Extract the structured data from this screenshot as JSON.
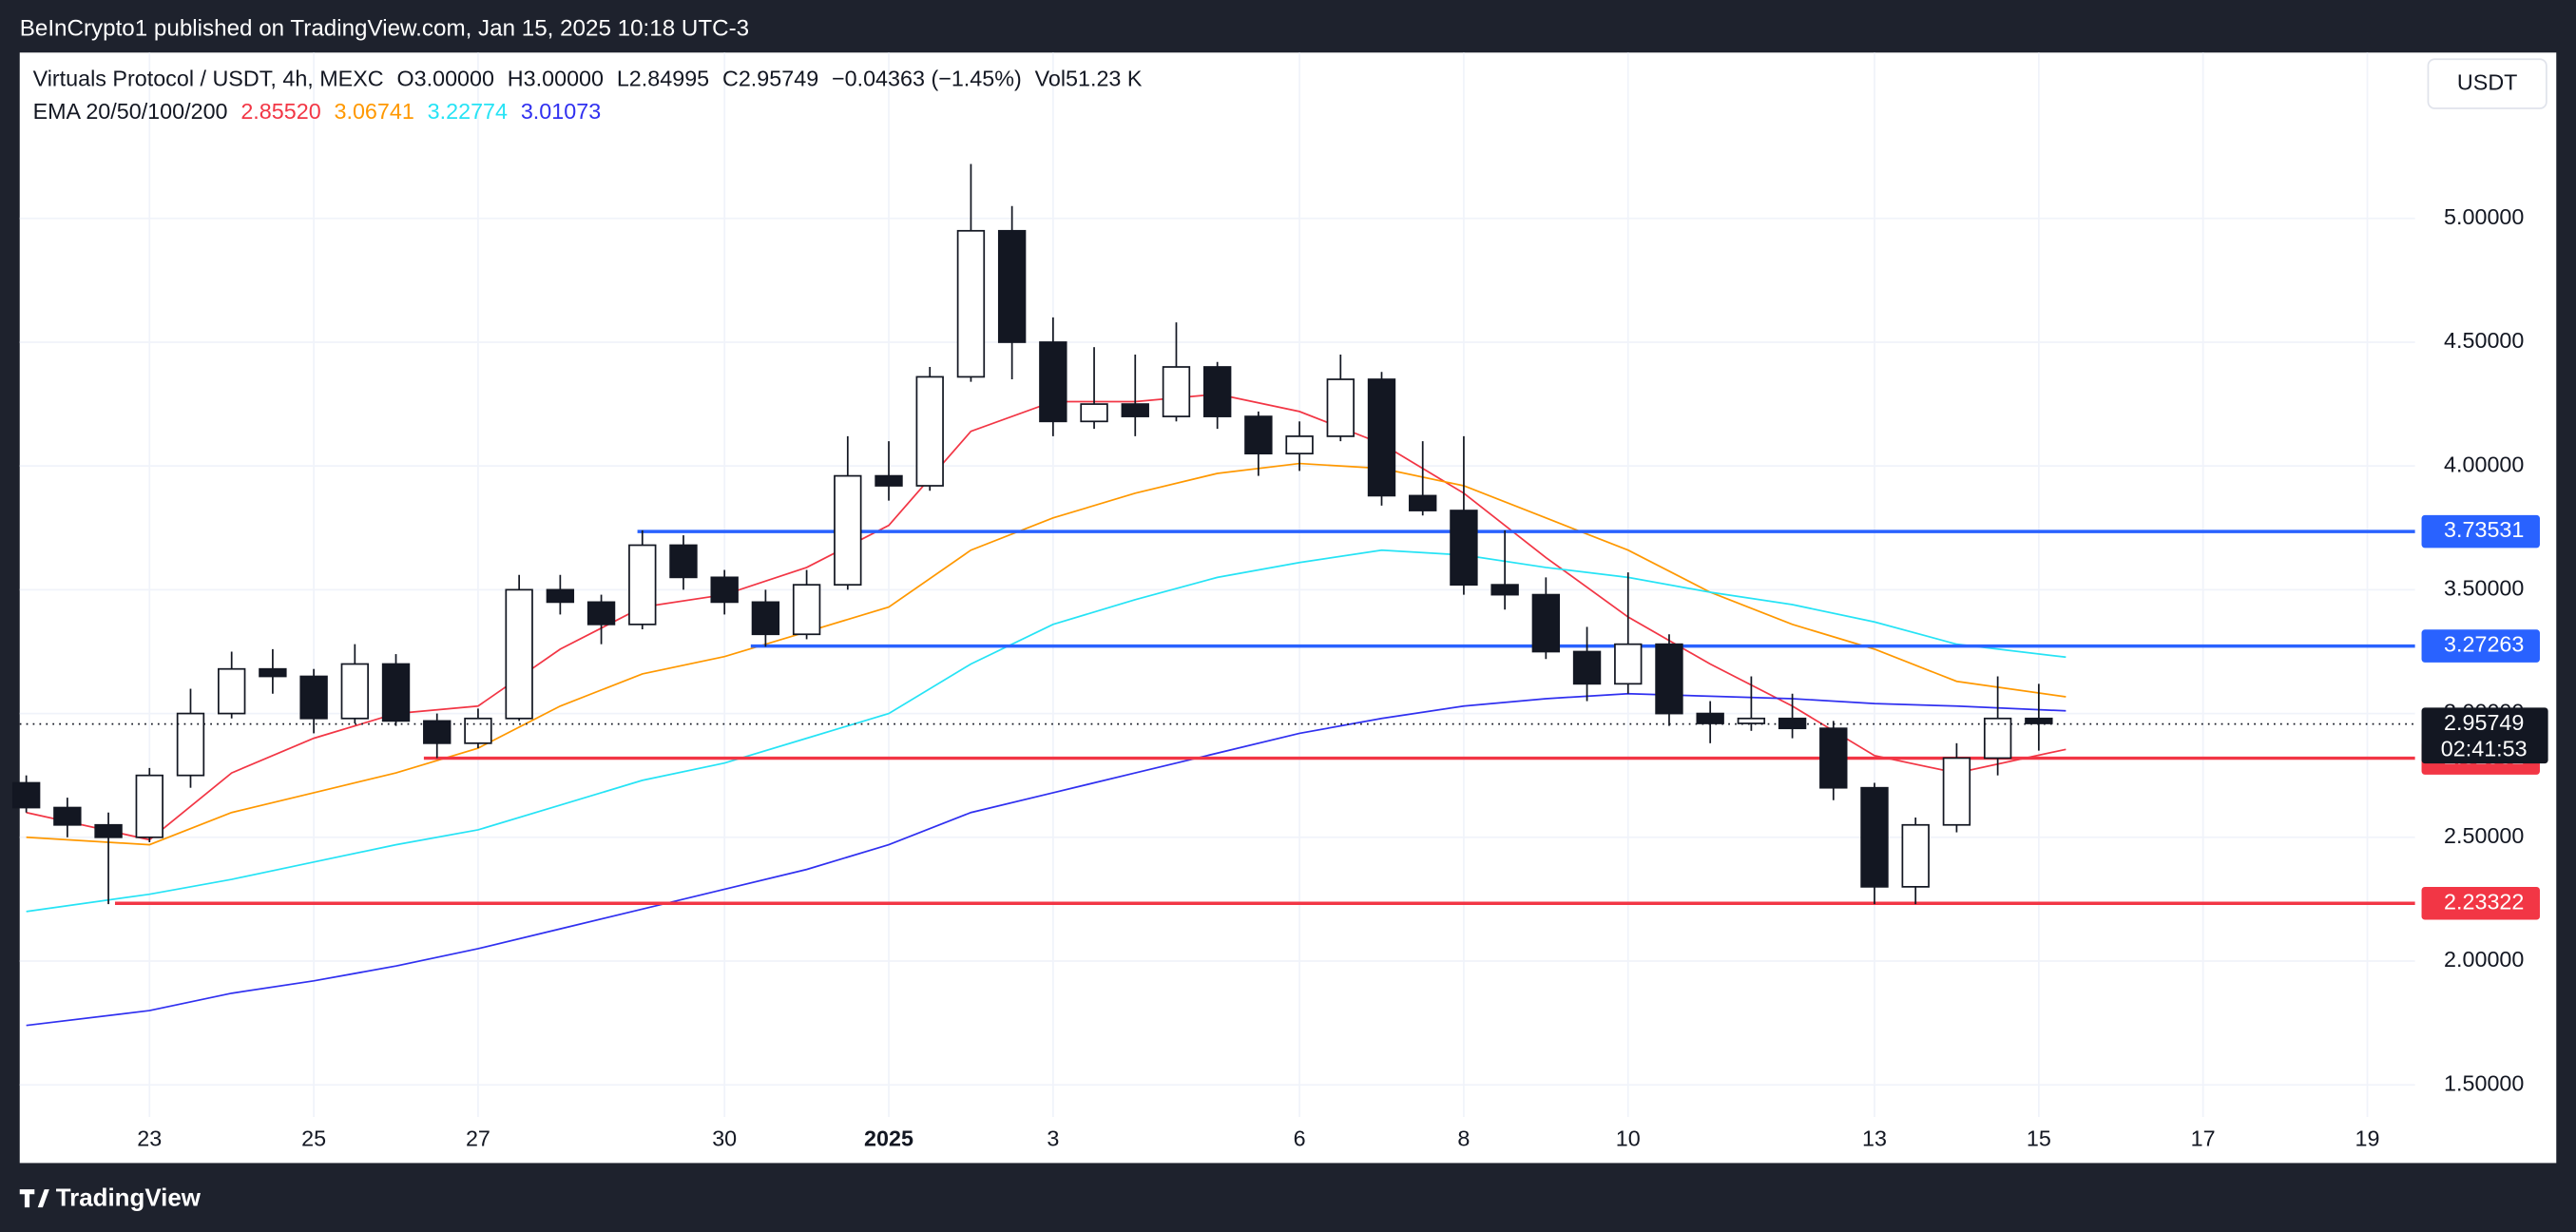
{
  "banner": "BeInCrypto1 published on TradingView.com, Jan 15, 2025 10:18 UTC-3",
  "footer": "TradingView",
  "currency_button": "USDT",
  "chart_data": {
    "type": "candlestick",
    "title": "Virtuals Protocol / USDT, 4h, MEXC",
    "ohlc_header": [
      {
        "key": "O",
        "value": "3.00000"
      },
      {
        "key": "H",
        "value": "3.00000"
      },
      {
        "key": "L",
        "value": "2.84995"
      },
      {
        "key": "C",
        "value": "2.95749"
      }
    ],
    "change": "−0.04363 (−1.45%)",
    "volume": {
      "key": "Vol",
      "value": "51.23 K"
    },
    "indicator": {
      "label": "EMA 20/50/100/200",
      "values": [
        "2.85520",
        "3.06741",
        "3.22774",
        "3.01073"
      ]
    },
    "x": [
      21.5,
      22,
      22.5,
      23,
      23.5,
      24,
      24.5,
      25,
      25.5,
      26,
      26.5,
      27,
      27.5,
      28,
      28.5,
      29,
      29.5,
      30,
      30.5,
      31,
      31.5,
      32,
      32.5,
      33,
      33.5,
      34,
      34.5,
      35,
      35.5,
      36,
      36.5,
      37,
      37.5,
      38,
      38.5,
      39,
      39.5,
      40,
      40.5,
      41,
      41.5,
      42,
      42.5,
      43,
      43.5,
      44,
      44.5,
      45,
      45.5,
      46
    ],
    "open": [
      2.72,
      2.62,
      2.55,
      2.5,
      2.75,
      3.0,
      3.18,
      3.15,
      2.98,
      3.2,
      2.97,
      2.88,
      2.98,
      3.5,
      3.45,
      3.36,
      3.68,
      3.55,
      3.45,
      3.32,
      3.52,
      3.96,
      3.92,
      4.36,
      4.95,
      4.5,
      4.18,
      4.25,
      4.2,
      4.4,
      4.2,
      4.05,
      4.12,
      4.35,
      3.88,
      3.82,
      3.52,
      3.48,
      3.25,
      3.12,
      3.28,
      3.0,
      2.96,
      2.98,
      2.94,
      2.7,
      2.3,
      2.55,
      2.82,
      2.98
    ],
    "high": [
      2.75,
      2.66,
      2.6,
      2.78,
      3.1,
      3.25,
      3.26,
      3.18,
      3.28,
      3.24,
      3.0,
      3.02,
      3.56,
      3.56,
      3.48,
      3.74,
      3.72,
      3.58,
      3.5,
      3.58,
      4.12,
      4.1,
      4.4,
      5.22,
      5.05,
      4.6,
      4.48,
      4.45,
      4.58,
      4.42,
      4.22,
      4.18,
      4.45,
      4.38,
      4.1,
      4.12,
      3.74,
      3.55,
      3.35,
      3.57,
      3.32,
      3.05,
      3.15,
      3.08,
      2.97,
      2.72,
      2.58,
      2.88,
      3.15,
      3.12
    ],
    "low": [
      2.6,
      2.5,
      2.23,
      2.48,
      2.7,
      2.98,
      3.08,
      2.92,
      2.96,
      2.95,
      2.82,
      2.86,
      2.97,
      3.4,
      3.28,
      3.34,
      3.5,
      3.4,
      3.27,
      3.3,
      3.5,
      3.86,
      3.9,
      4.34,
      4.35,
      4.12,
      4.15,
      4.12,
      4.18,
      4.15,
      3.96,
      3.98,
      4.1,
      3.84,
      3.8,
      3.48,
      3.42,
      3.22,
      3.05,
      3.08,
      2.95,
      2.88,
      2.93,
      2.9,
      2.65,
      2.23,
      2.23,
      2.52,
      2.75,
      2.85
    ],
    "close": [
      2.62,
      2.55,
      2.5,
      2.75,
      3.0,
      3.18,
      3.15,
      2.98,
      3.2,
      2.97,
      2.88,
      2.98,
      3.5,
      3.45,
      3.36,
      3.68,
      3.55,
      3.45,
      3.32,
      3.52,
      3.96,
      3.92,
      4.36,
      4.95,
      4.5,
      4.18,
      4.25,
      4.2,
      4.4,
      4.2,
      4.05,
      4.12,
      4.35,
      3.88,
      3.82,
      3.52,
      3.48,
      3.25,
      3.12,
      3.28,
      3.0,
      2.96,
      2.98,
      2.94,
      2.7,
      2.3,
      2.55,
      2.82,
      2.98,
      2.96
    ],
    "series": [
      {
        "color": "#f23645",
        "x": [
          21.5,
          23,
          24,
          25,
          26,
          27,
          28,
          29,
          30,
          31,
          32,
          33,
          34,
          35,
          36,
          37,
          38,
          39,
          40,
          41,
          42,
          43,
          44,
          45,
          46.33
        ],
        "values": [
          2.6,
          2.49,
          2.76,
          2.9,
          3.0,
          3.03,
          3.26,
          3.43,
          3.48,
          3.59,
          3.76,
          4.14,
          4.26,
          4.26,
          4.29,
          4.22,
          4.09,
          3.89,
          3.63,
          3.39,
          3.2,
          3.03,
          2.83,
          2.76,
          2.8552
        ]
      },
      {
        "color": "#ff9800",
        "x": [
          21.5,
          23,
          24,
          25,
          26,
          27,
          28,
          29,
          30,
          31,
          32,
          33,
          34,
          35,
          36,
          37,
          38,
          39,
          40,
          41,
          42,
          43,
          44,
          45,
          46.33
        ],
        "values": [
          2.5,
          2.47,
          2.6,
          2.68,
          2.76,
          2.86,
          3.03,
          3.16,
          3.23,
          3.33,
          3.43,
          3.66,
          3.79,
          3.89,
          3.97,
          4.01,
          3.99,
          3.92,
          3.79,
          3.66,
          3.49,
          3.36,
          3.26,
          3.13,
          3.06741
        ]
      },
      {
        "color": "#26e3f5",
        "x": [
          21.5,
          23,
          24,
          25,
          26,
          27,
          28,
          29,
          30,
          31,
          32,
          33,
          34,
          35,
          36,
          37,
          38,
          39,
          40,
          41,
          42,
          43,
          44,
          45,
          46.33
        ],
        "values": [
          2.2,
          2.27,
          2.33,
          2.4,
          2.47,
          2.53,
          2.63,
          2.73,
          2.8,
          2.9,
          3.0,
          3.2,
          3.36,
          3.46,
          3.55,
          3.61,
          3.66,
          3.64,
          3.59,
          3.55,
          3.49,
          3.44,
          3.37,
          3.28,
          3.22774
        ]
      },
      {
        "color": "#3030f0",
        "x": [
          21.5,
          23,
          24,
          25,
          26,
          27,
          28,
          29,
          30,
          31,
          32,
          33,
          34,
          35,
          36,
          37,
          38,
          39,
          40,
          41,
          42,
          43,
          44,
          45,
          46.33
        ],
        "values": [
          1.74,
          1.8,
          1.87,
          1.92,
          1.98,
          2.05,
          2.13,
          2.21,
          2.29,
          2.37,
          2.47,
          2.6,
          2.68,
          2.76,
          2.84,
          2.92,
          2.98,
          3.03,
          3.06,
          3.08,
          3.07,
          3.06,
          3.04,
          3.03,
          3.01073
        ]
      }
    ],
    "levels": [
      {
        "value": 3.73531,
        "start": 28.94,
        "color": "#2962ff"
      },
      {
        "value": 3.27263,
        "start": 30.32,
        "color": "#2962ff"
      },
      {
        "value": 2.81952,
        "start": 26.34,
        "color": "#f23645"
      },
      {
        "value": 2.23322,
        "start": 22.58,
        "color": "#f23645"
      }
    ],
    "last_price": {
      "value": 2.95749,
      "countdown": "02:41:53"
    },
    "xlim": [
      21.42,
      50.58
    ],
    "ylim": [
      1.37,
      5.67
    ],
    "xticks": [
      {
        "value": 23,
        "label": "23"
      },
      {
        "value": 25,
        "label": "25"
      },
      {
        "value": 27,
        "label": "27"
      },
      {
        "value": 30,
        "label": "30"
      },
      {
        "value": 32,
        "label": "2025"
      },
      {
        "value": 34,
        "label": "3"
      },
      {
        "value": 37,
        "label": "6"
      },
      {
        "value": 39,
        "label": "8"
      },
      {
        "value": 41,
        "label": "10"
      },
      {
        "value": 44,
        "label": "13"
      },
      {
        "value": 46,
        "label": "15"
      },
      {
        "value": 48,
        "label": "17"
      },
      {
        "value": 50,
        "label": "19"
      }
    ],
    "yticks": [
      {
        "value": 1.5,
        "label": "1.50000"
      },
      {
        "value": 2,
        "label": "2.00000"
      },
      {
        "value": 2.5,
        "label": "2.50000"
      },
      {
        "value": 3,
        "label": "3.00000"
      },
      {
        "value": 3.5,
        "label": "3.50000"
      },
      {
        "value": 4,
        "label": "4.00000"
      },
      {
        "value": 4.5,
        "label": "4.50000"
      },
      {
        "value": 5,
        "label": "5.00000"
      }
    ],
    "grid": true
  }
}
